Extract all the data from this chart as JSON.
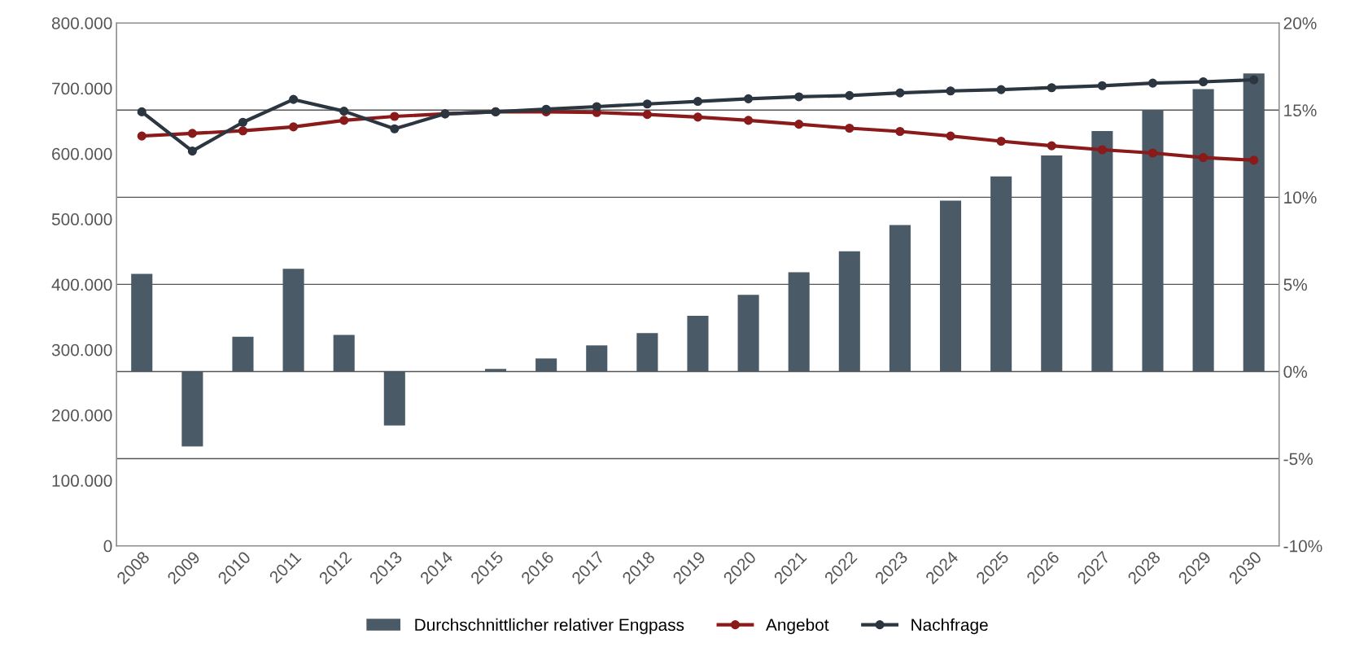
{
  "chart_data": {
    "type": "line",
    "categories": [
      "2008",
      "2009",
      "2010",
      "2011",
      "2012",
      "2013",
      "2014",
      "2015",
      "2016",
      "2017",
      "2018",
      "2019",
      "2020",
      "2021",
      "2022",
      "2023",
      "2024",
      "2025",
      "2026",
      "2027",
      "2028",
      "2029",
      "2030"
    ],
    "series": [
      {
        "name": "Durchschnittlicher relativer Engpass",
        "type": "bar",
        "axis": "y2",
        "color": "#4a5b67",
        "values": [
          5.6,
          -4.3,
          2.0,
          5.9,
          2.1,
          -3.1,
          0,
          0.15,
          0.75,
          1.5,
          2.2,
          3.2,
          4.4,
          5.7,
          6.9,
          8.4,
          9.8,
          11.2,
          12.4,
          13.8,
          15.0,
          16.2,
          17.1
        ]
      },
      {
        "name": "Angebot",
        "color": "#8b1a1a",
        "values": [
          627000,
          631000,
          635000,
          641000,
          651000,
          657000,
          661000,
          664000,
          664000,
          663000,
          660000,
          656000,
          651000,
          645000,
          639000,
          634000,
          627000,
          619000,
          612000,
          606000,
          601000,
          594000,
          590000
        ]
      },
      {
        "name": "Nachfrage",
        "color": "#2b3640",
        "values": [
          664000,
          604000,
          648000,
          683000,
          665000,
          638000,
          661000,
          664000,
          668000,
          672000,
          676000,
          680000,
          684000,
          687000,
          689000,
          693000,
          696000,
          698000,
          701000,
          704000,
          708000,
          710000,
          713000
        ]
      }
    ],
    "ylim": [
      0,
      800000
    ],
    "yticks": [
      {
        "value": 0,
        "label": "0"
      },
      {
        "value": 100000,
        "label": "100.000"
      },
      {
        "value": 200000,
        "label": "200.000"
      },
      {
        "value": 300000,
        "label": "300.000"
      },
      {
        "value": 400000,
        "label": "400.000"
      },
      {
        "value": 500000,
        "label": "500.000"
      },
      {
        "value": 600000,
        "label": "600.000"
      },
      {
        "value": 700000,
        "label": "700.000"
      },
      {
        "value": 800000,
        "label": "800.000"
      }
    ],
    "y2lim": [
      -10,
      20
    ],
    "y2ticks": [
      {
        "value": -10,
        "label": "-10%"
      },
      {
        "value": -5,
        "label": "-5%"
      },
      {
        "value": 0,
        "label": "0%"
      },
      {
        "value": 5,
        "label": "5%"
      },
      {
        "value": 10,
        "label": "10%"
      },
      {
        "value": 15,
        "label": "15%"
      },
      {
        "value": 20,
        "label": "20%"
      }
    ],
    "grid": "y2",
    "legend": "bottom",
    "marker": "circle",
    "line_style": "solid"
  }
}
